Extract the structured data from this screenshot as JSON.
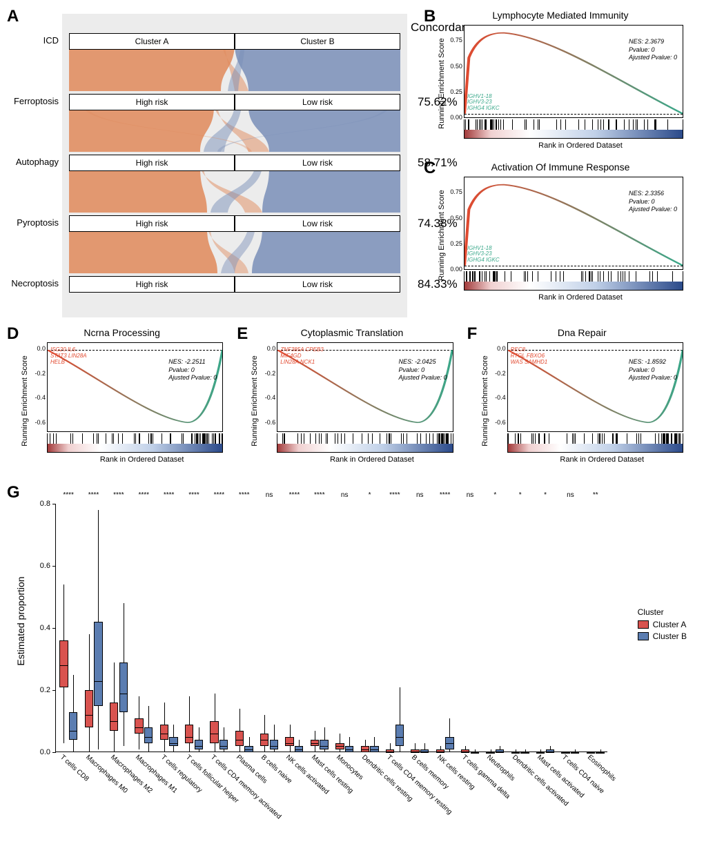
{
  "colors": {
    "cluster_a": "#d9534f",
    "cluster_b": "#5b7db1",
    "flow_orange": "#e08a5b",
    "flow_blue": "#7a8fb8",
    "gsea_red": "#e2492f",
    "gsea_green": "#3aa88a",
    "sankey_bg": "#ececec",
    "rug_red": "#a23a3a",
    "rug_lightred": "#f0d0d0",
    "rug_white": "#ffffff",
    "rug_lightblue": "#c0d0e8",
    "rug_blue": "#2b4a8a"
  },
  "panel_labels": {
    "A": "A",
    "B": "B",
    "C": "C",
    "D": "D",
    "E": "E",
    "F": "F",
    "G": "G"
  },
  "panelA": {
    "concordance_title": "Concordance",
    "rows": [
      {
        "label": "ICD",
        "left": "Cluster A",
        "right": "Cluster B",
        "concordance": ""
      },
      {
        "label": "Ferroptosis",
        "left": "High risk",
        "right": "Low risk",
        "concordance": "75.62%"
      },
      {
        "label": "Autophagy",
        "left": "High risk",
        "right": "Low risk",
        "concordance": "58.71%"
      },
      {
        "label": "Pyroptosis",
        "left": "High risk",
        "right": "Low risk",
        "concordance": "74.38%"
      },
      {
        "label": "Necroptosis",
        "left": "High risk",
        "right": "Low risk",
        "concordance": "84.33%"
      }
    ]
  },
  "gsea": {
    "ylabel": "Running Enrichment Score",
    "xlabel": "Rank in Ordered Dataset",
    "B": {
      "title": "Lymphocyte Mediated Immunity",
      "nes": "NES: 2.3679",
      "pvalue": "Pvalue: 0",
      "apvalue": "Ajusted Pvalue: 0",
      "genes": [
        "IGHV1-18",
        "IGHV3-23",
        "IGHG4 IGKC"
      ],
      "direction": "up",
      "yticks": [
        "0.00",
        "0.25",
        "0.50",
        "0.75"
      ],
      "ytick_pos": [
        1.0,
        0.72,
        0.44,
        0.16
      ],
      "ticks_left_heavy": true
    },
    "C": {
      "title": "Activation Of Immune Response",
      "nes": "NES: 2.3356",
      "pvalue": "Pvalue: 0",
      "apvalue": "Ajusted Pvalue: 0",
      "genes": [
        "IGHV1-18",
        "IGHV3-23",
        "IGHG4 IGKC"
      ],
      "direction": "up",
      "yticks": [
        "0.00",
        "0.25",
        "0.50",
        "0.75"
      ],
      "ytick_pos": [
        1.0,
        0.72,
        0.44,
        0.16
      ],
      "ticks_left_heavy": true
    },
    "D": {
      "title": "Ncrna Processing",
      "nes": "NES: -2.2511",
      "pvalue": "Pvalue: 0",
      "apvalue": "Ajusted Pvalue: 0",
      "genes_red": [
        "ISG20  IL6",
        "STAT3  LIN28A",
        "HELB"
      ],
      "direction": "down",
      "yticks": [
        "0.0",
        "-0.2",
        "-0.4",
        "-0.6"
      ],
      "ytick_pos": [
        0.06,
        0.34,
        0.62,
        0.9
      ],
      "ticks_left_heavy": false
    },
    "E": {
      "title": "Cytoplasmic Translation",
      "nes": "NES: -2.0425",
      "pvalue": "Pvalue: 0",
      "apvalue": "Ajusted Pvalue: 0",
      "genes_red": [
        "ZNF385A  CPEB3",
        "MIF4GD",
        "LIN28A   NCK1"
      ],
      "direction": "down",
      "yticks": [
        "0.0",
        "-0.2",
        "-0.4",
        "-0.6"
      ],
      "ytick_pos": [
        0.06,
        0.34,
        0.62,
        0.9
      ],
      "ticks_left_heavy": false
    },
    "F": {
      "title": "Dna Repair",
      "nes": "NES: -1.8592",
      "pvalue": "Pvalue: 0",
      "apvalue": "Ajusted Pvalue: 0",
      "genes_red": [
        "REC8",
        "RTGL  FBXO6",
        "WAS  SAMHD1"
      ],
      "direction": "down",
      "yticks": [
        "0.0",
        "-0.2",
        "-0.4",
        "-0.6"
      ],
      "ytick_pos": [
        0.06,
        0.34,
        0.62,
        0.9
      ],
      "ticks_left_heavy": false
    }
  },
  "panelG": {
    "ylabel": "Estimated proportion",
    "ylim": [
      0,
      0.8
    ],
    "yticks": [
      0.0,
      0.2,
      0.4,
      0.6,
      0.8
    ],
    "legend_title": "Cluster",
    "legend": [
      {
        "label": "Cluster A",
        "color": "#d9534f"
      },
      {
        "label": "Cluster B",
        "color": "#5b7db1"
      }
    ],
    "cells": [
      {
        "name": "T cells CD8",
        "sig": "****",
        "A": {
          "q1": 0.21,
          "med": 0.28,
          "q3": 0.36,
          "lo": 0.03,
          "hi": 0.54
        },
        "B": {
          "q1": 0.04,
          "med": 0.07,
          "q3": 0.13,
          "lo": 0.0,
          "hi": 0.25
        }
      },
      {
        "name": "Macrophages M0",
        "sig": "****",
        "A": {
          "q1": 0.08,
          "med": 0.12,
          "q3": 0.2,
          "lo": 0.0,
          "hi": 0.38
        },
        "B": {
          "q1": 0.15,
          "med": 0.23,
          "q3": 0.42,
          "lo": 0.01,
          "hi": 0.78
        }
      },
      {
        "name": "Macrophages M2",
        "sig": "****",
        "A": {
          "q1": 0.07,
          "med": 0.1,
          "q3": 0.16,
          "lo": 0.0,
          "hi": 0.29
        },
        "B": {
          "q1": 0.13,
          "med": 0.19,
          "q3": 0.29,
          "lo": 0.02,
          "hi": 0.48
        }
      },
      {
        "name": "Macrophages M1",
        "sig": "****",
        "A": {
          "q1": 0.06,
          "med": 0.08,
          "q3": 0.11,
          "lo": 0.01,
          "hi": 0.18
        },
        "B": {
          "q1": 0.03,
          "med": 0.05,
          "q3": 0.08,
          "lo": 0.0,
          "hi": 0.15
        }
      },
      {
        "name": "T cells regulatory",
        "sig": "****",
        "A": {
          "q1": 0.04,
          "med": 0.06,
          "q3": 0.09,
          "lo": 0.0,
          "hi": 0.16
        },
        "B": {
          "q1": 0.02,
          "med": 0.03,
          "q3": 0.05,
          "lo": 0.0,
          "hi": 0.09
        }
      },
      {
        "name": "T cells follicular helper",
        "sig": "****",
        "A": {
          "q1": 0.03,
          "med": 0.05,
          "q3": 0.09,
          "lo": 0.0,
          "hi": 0.18
        },
        "B": {
          "q1": 0.01,
          "med": 0.02,
          "q3": 0.04,
          "lo": 0.0,
          "hi": 0.08
        }
      },
      {
        "name": "T cells CD4 memory activated",
        "sig": "****",
        "A": {
          "q1": 0.03,
          "med": 0.06,
          "q3": 0.1,
          "lo": 0.0,
          "hi": 0.19
        },
        "B": {
          "q1": 0.01,
          "med": 0.02,
          "q3": 0.04,
          "lo": 0.0,
          "hi": 0.08
        }
      },
      {
        "name": "Plasma cells",
        "sig": "****",
        "A": {
          "q1": 0.02,
          "med": 0.04,
          "q3": 0.07,
          "lo": 0.0,
          "hi": 0.14
        },
        "B": {
          "q1": 0.0,
          "med": 0.01,
          "q3": 0.02,
          "lo": 0.0,
          "hi": 0.05
        }
      },
      {
        "name": "B cells naive",
        "sig": "ns",
        "A": {
          "q1": 0.02,
          "med": 0.04,
          "q3": 0.06,
          "lo": 0.0,
          "hi": 0.12
        },
        "B": {
          "q1": 0.01,
          "med": 0.02,
          "q3": 0.04,
          "lo": 0.0,
          "hi": 0.09
        }
      },
      {
        "name": "NK cells activated",
        "sig": "****",
        "A": {
          "q1": 0.02,
          "med": 0.03,
          "q3": 0.05,
          "lo": 0.0,
          "hi": 0.09
        },
        "B": {
          "q1": 0.0,
          "med": 0.01,
          "q3": 0.02,
          "lo": 0.0,
          "hi": 0.04
        }
      },
      {
        "name": "Mast cells resting",
        "sig": "****",
        "A": {
          "q1": 0.02,
          "med": 0.03,
          "q3": 0.04,
          "lo": 0.0,
          "hi": 0.07
        },
        "B": {
          "q1": 0.01,
          "med": 0.02,
          "q3": 0.04,
          "lo": 0.0,
          "hi": 0.08
        }
      },
      {
        "name": "Monocytes",
        "sig": "ns",
        "A": {
          "q1": 0.01,
          "med": 0.02,
          "q3": 0.03,
          "lo": 0.0,
          "hi": 0.06
        },
        "B": {
          "q1": 0.0,
          "med": 0.01,
          "q3": 0.02,
          "lo": 0.0,
          "hi": 0.05
        }
      },
      {
        "name": "Dendritic cells resting",
        "sig": "*",
        "A": {
          "q1": 0.0,
          "med": 0.01,
          "q3": 0.02,
          "lo": 0.0,
          "hi": 0.04
        },
        "B": {
          "q1": 0.0,
          "med": 0.01,
          "q3": 0.02,
          "lo": 0.0,
          "hi": 0.05
        }
      },
      {
        "name": "T cells CD4 memory resting",
        "sig": "****",
        "A": {
          "q1": 0.0,
          "med": 0.0,
          "q3": 0.01,
          "lo": 0.0,
          "hi": 0.03
        },
        "B": {
          "q1": 0.02,
          "med": 0.05,
          "q3": 0.09,
          "lo": 0.0,
          "hi": 0.21
        }
      },
      {
        "name": "B cells memory",
        "sig": "ns",
        "A": {
          "q1": 0.0,
          "med": 0.0,
          "q3": 0.01,
          "lo": 0.0,
          "hi": 0.03
        },
        "B": {
          "q1": 0.0,
          "med": 0.0,
          "q3": 0.01,
          "lo": 0.0,
          "hi": 0.03
        }
      },
      {
        "name": "NK cells resting",
        "sig": "****",
        "A": {
          "q1": 0.0,
          "med": 0.0,
          "q3": 0.01,
          "lo": 0.0,
          "hi": 0.02
        },
        "B": {
          "q1": 0.01,
          "med": 0.03,
          "q3": 0.05,
          "lo": 0.0,
          "hi": 0.11
        }
      },
      {
        "name": "T cells gamma delta",
        "sig": "ns",
        "A": {
          "q1": 0.0,
          "med": 0.0,
          "q3": 0.01,
          "lo": 0.0,
          "hi": 0.02
        },
        "B": {
          "q1": 0.0,
          "med": 0.0,
          "q3": 0.0,
          "lo": 0.0,
          "hi": 0.01
        }
      },
      {
        "name": "Neutrophils",
        "sig": "*",
        "A": {
          "q1": 0.0,
          "med": 0.0,
          "q3": 0.0,
          "lo": 0.0,
          "hi": 0.01
        },
        "B": {
          "q1": 0.0,
          "med": 0.0,
          "q3": 0.01,
          "lo": 0.0,
          "hi": 0.02
        }
      },
      {
        "name": "Dendritic cells activated",
        "sig": "*",
        "A": {
          "q1": 0.0,
          "med": 0.0,
          "q3": 0.0,
          "lo": 0.0,
          "hi": 0.01
        },
        "B": {
          "q1": 0.0,
          "med": 0.0,
          "q3": 0.0,
          "lo": 0.0,
          "hi": 0.01
        }
      },
      {
        "name": "Mast cells activated",
        "sig": "*",
        "A": {
          "q1": 0.0,
          "med": 0.0,
          "q3": 0.0,
          "lo": 0.0,
          "hi": 0.01
        },
        "B": {
          "q1": 0.0,
          "med": 0.0,
          "q3": 0.01,
          "lo": 0.0,
          "hi": 0.02
        }
      },
      {
        "name": "T cells CD4 naive",
        "sig": "ns",
        "A": {
          "q1": 0.0,
          "med": 0.0,
          "q3": 0.0,
          "lo": 0.0,
          "hi": 0.0
        },
        "B": {
          "q1": 0.0,
          "med": 0.0,
          "q3": 0.0,
          "lo": 0.0,
          "hi": 0.01
        }
      },
      {
        "name": "Eosinophils",
        "sig": "**",
        "A": {
          "q1": 0.0,
          "med": 0.0,
          "q3": 0.0,
          "lo": 0.0,
          "hi": 0.0
        },
        "B": {
          "q1": 0.0,
          "med": 0.0,
          "q3": 0.0,
          "lo": 0.0,
          "hi": 0.01
        }
      }
    ]
  }
}
